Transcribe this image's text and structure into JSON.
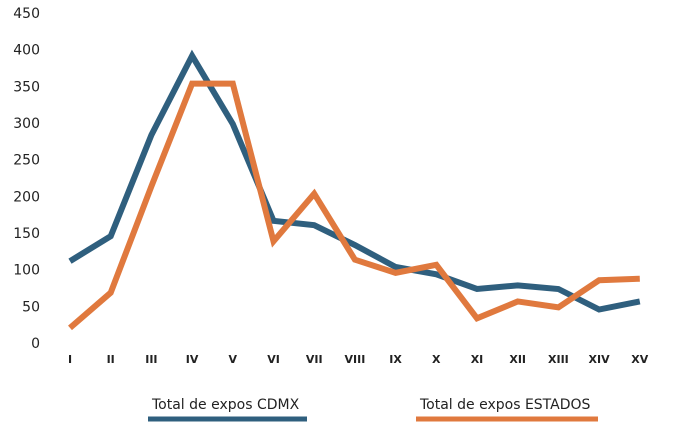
{
  "chart_data": {
    "type": "line",
    "categories": [
      "I",
      "II",
      "III",
      "IV",
      "V",
      "VI",
      "VII",
      "VIII",
      "IX",
      "X",
      "XI",
      "XII",
      "XIII",
      "XIV",
      "XV"
    ],
    "series": [
      {
        "name": "Total de expos CDMX",
        "color": "#2f5f7e",
        "values": [
          113,
          147,
          285,
          393,
          300,
          168,
          162,
          135,
          105,
          95,
          75,
          80,
          75,
          47,
          58
        ]
      },
      {
        "name": "Total de expos ESTADOS",
        "color": "#e0793e",
        "values": [
          22,
          70,
          215,
          355,
          355,
          140,
          205,
          115,
          97,
          108,
          35,
          58,
          50,
          87,
          89
        ]
      }
    ],
    "ylim": [
      0,
      450
    ],
    "yticks": [
      0,
      50,
      100,
      150,
      200,
      250,
      300,
      350,
      400,
      450
    ],
    "grid": false,
    "legend": "bottom"
  }
}
